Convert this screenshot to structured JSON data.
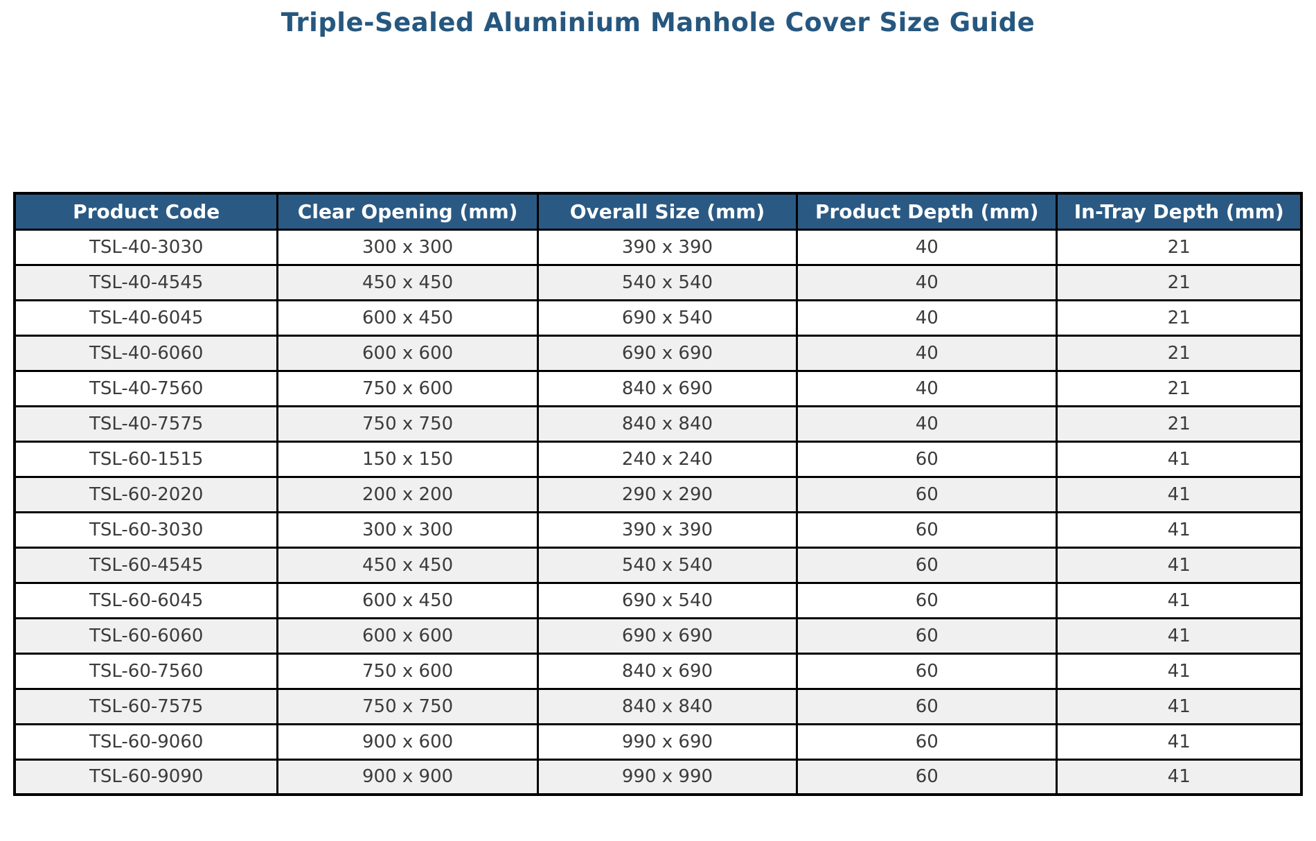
{
  "title": "Triple-Sealed Aluminium Manhole Cover Size Guide",
  "colors": {
    "title_color": "#26577F",
    "header_bg": "#2A5A84",
    "header_text": "#FFFFFF",
    "row_bg": "#FFFFFF",
    "row_alt_bg": "#F0F0F0",
    "border": "#000000",
    "cell_text": "#3B3B3B"
  },
  "chart_data": {
    "type": "table",
    "title": "Triple-Sealed Aluminium Manhole Cover Size Guide",
    "columns": [
      "Product Code",
      "Clear Opening (mm)",
      "Overall Size (mm)",
      "Product Depth (mm)",
      "In-Tray Depth (mm)"
    ],
    "rows": [
      [
        "TSL-40-3030",
        "300 x 300",
        "390 x 390",
        "40",
        "21"
      ],
      [
        "TSL-40-4545",
        "450 x 450",
        "540 x 540",
        "40",
        "21"
      ],
      [
        "TSL-40-6045",
        "600 x 450",
        "690 x 540",
        "40",
        "21"
      ],
      [
        "TSL-40-6060",
        "600 x 600",
        "690 x 690",
        "40",
        "21"
      ],
      [
        "TSL-40-7560",
        "750 x 600",
        "840 x 690",
        "40",
        "21"
      ],
      [
        "TSL-40-7575",
        "750 x 750",
        "840 x 840",
        "40",
        "21"
      ],
      [
        "TSL-60-1515",
        "150 x 150",
        "240 x 240",
        "60",
        "41"
      ],
      [
        "TSL-60-2020",
        "200 x 200",
        "290 x 290",
        "60",
        "41"
      ],
      [
        "TSL-60-3030",
        "300 x 300",
        "390 x 390",
        "60",
        "41"
      ],
      [
        "TSL-60-4545",
        "450 x 450",
        "540 x 540",
        "60",
        "41"
      ],
      [
        "TSL-60-6045",
        "600 x 450",
        "690 x 540",
        "60",
        "41"
      ],
      [
        "TSL-60-6060",
        "600 x 600",
        "690 x 690",
        "60",
        "41"
      ],
      [
        "TSL-60-7560",
        "750 x 600",
        "840 x 690",
        "60",
        "41"
      ],
      [
        "TSL-60-7575",
        "750 x 750",
        "840 x 840",
        "60",
        "41"
      ],
      [
        "TSL-60-9060",
        "900 x 600",
        "990 x 690",
        "60",
        "41"
      ],
      [
        "TSL-60-9090",
        "900 x 900",
        "990 x 990",
        "60",
        "41"
      ]
    ]
  }
}
